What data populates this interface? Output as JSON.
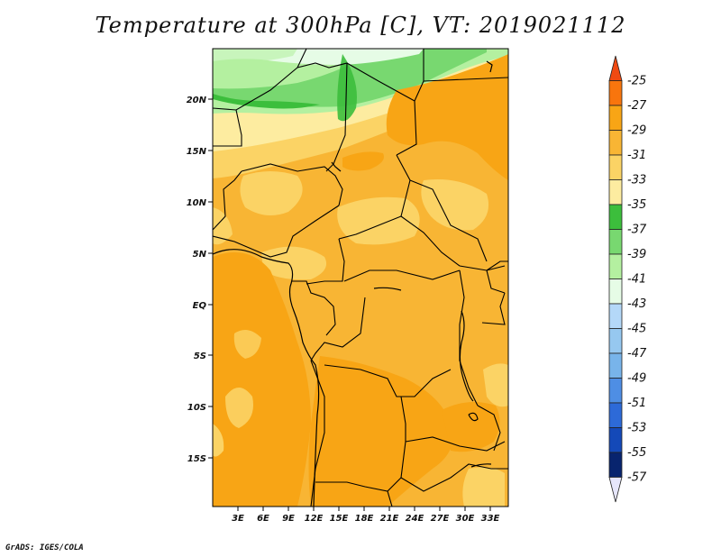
{
  "title": "Temperature at 300hPa [C], VT: 2019021112",
  "credit": "GrADS: IGES/COLA",
  "map": {
    "lat_labels": [
      "20N",
      "15N",
      "10N",
      "5N",
      "EQ",
      "5S",
      "10S",
      "15S"
    ],
    "lon_labels": [
      "3E",
      "6E",
      "9E",
      "12E",
      "15E",
      "18E",
      "21E",
      "24E",
      "27E",
      "30E",
      "33E"
    ]
  },
  "colorbar": {
    "labels": [
      "-25",
      "-27",
      "-29",
      "-31",
      "-33",
      "-35",
      "-37",
      "-39",
      "-41",
      "-43",
      "-45",
      "-47",
      "-49",
      "-51",
      "-53",
      "-55",
      "-57"
    ],
    "colors": [
      "#f04a12",
      "#f8750d",
      "#f8a515",
      "#f8b534",
      "#fbd365",
      "#fdeca0",
      "#3cbe3c",
      "#78d870",
      "#b4f0a0",
      "#e6fce6",
      "#b4d8f8",
      "#96c8f0",
      "#78b4ea",
      "#4e8ee4",
      "#2d6ad8",
      "#1449b8",
      "#08246e",
      "#e6e6fb"
    ]
  }
}
